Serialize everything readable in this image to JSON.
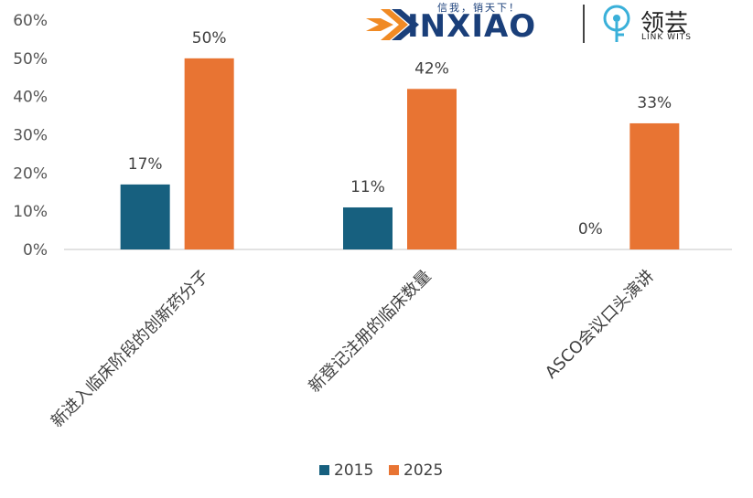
{
  "logos": {
    "xinxiao": {
      "text": "INXIAO",
      "slogan": "信我，销天下！"
    },
    "linkwits": {
      "cn": "领芸",
      "en": "LINK WITS"
    }
  },
  "chart_data": {
    "type": "bar",
    "categories": [
      "新进入临床阶段的创新药分子",
      "新登记注册的临床数量",
      "ASCO会议口头演讲"
    ],
    "series": [
      {
        "name": "2015",
        "values": [
          17,
          11,
          0
        ],
        "labels": [
          "17%",
          "11%",
          "0%"
        ],
        "color": "#17607f"
      },
      {
        "name": "2025",
        "values": [
          50,
          42,
          33
        ],
        "labels": [
          "50%",
          "42%",
          "33%"
        ],
        "color": "#e87433"
      }
    ],
    "yticks": [
      "0%",
      "10%",
      "20%",
      "30%",
      "40%",
      "50%",
      "60%"
    ],
    "ylim": [
      0,
      60
    ],
    "legend": "bottom",
    "grid": false
  }
}
